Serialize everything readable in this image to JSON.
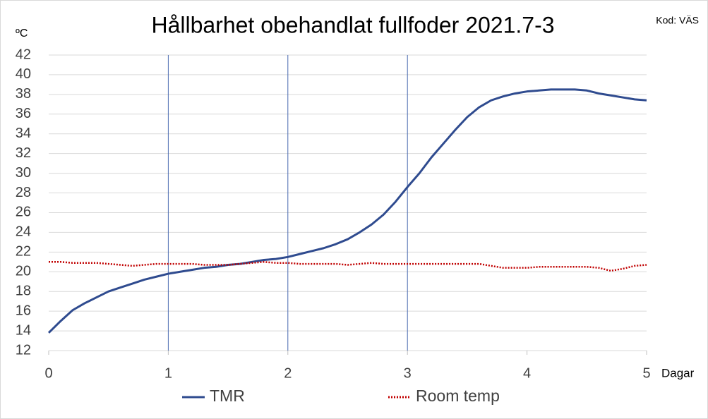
{
  "chart_data": {
    "type": "line",
    "title": "Hållbarhet obehandlat fullfoder 2021.7-3",
    "code_label": "Kod: VÄS",
    "y_label": "ºC",
    "x_label": "Dagar",
    "x": [
      0,
      0.1,
      0.2,
      0.3,
      0.4,
      0.5,
      0.6,
      0.7,
      0.8,
      0.9,
      1,
      1.1,
      1.2,
      1.3,
      1.4,
      1.5,
      1.6,
      1.7,
      1.8,
      1.9,
      2,
      2.1,
      2.2,
      2.3,
      2.4,
      2.5,
      2.6,
      2.7,
      2.8,
      2.9,
      3,
      3.1,
      3.2,
      3.3,
      3.4,
      3.5,
      3.6,
      3.7,
      3.8,
      3.9,
      4,
      4.1,
      4.2,
      4.3,
      4.4,
      4.5,
      4.6,
      4.7,
      4.8,
      4.9,
      5
    ],
    "series": [
      {
        "name": "TMR",
        "color": "#2f4b8f",
        "style": "solid",
        "values": [
          13.8,
          15.0,
          16.1,
          16.8,
          17.4,
          18.0,
          18.4,
          18.8,
          19.2,
          19.5,
          19.8,
          20.0,
          20.2,
          20.4,
          20.5,
          20.7,
          20.8,
          21.0,
          21.2,
          21.3,
          21.5,
          21.8,
          22.1,
          22.4,
          22.8,
          23.3,
          24.0,
          24.8,
          25.8,
          27.1,
          28.6,
          30.0,
          31.6,
          33.0,
          34.4,
          35.7,
          36.7,
          37.4,
          37.8,
          38.1,
          38.3,
          38.4,
          38.5,
          38.5,
          38.5,
          38.4,
          38.1,
          37.9,
          37.7,
          37.5,
          37.4
        ]
      },
      {
        "name": "Room temp",
        "color": "#c00000",
        "style": "dotted",
        "values": [
          21.0,
          21.0,
          20.9,
          20.9,
          20.9,
          20.8,
          20.7,
          20.6,
          20.7,
          20.8,
          20.8,
          20.8,
          20.8,
          20.7,
          20.7,
          20.7,
          20.8,
          20.9,
          21.0,
          20.9,
          20.9,
          20.8,
          20.8,
          20.8,
          20.8,
          20.7,
          20.8,
          20.9,
          20.8,
          20.8,
          20.8,
          20.8,
          20.8,
          20.8,
          20.8,
          20.8,
          20.8,
          20.6,
          20.4,
          20.4,
          20.4,
          20.5,
          20.5,
          20.5,
          20.5,
          20.5,
          20.4,
          20.1,
          20.3,
          20.6,
          20.7
        ]
      }
    ],
    "xlim": [
      0,
      5
    ],
    "xticks": [
      0,
      1,
      2,
      3,
      4,
      5
    ],
    "ylim": [
      12,
      42
    ],
    "yticks": [
      12,
      14,
      16,
      18,
      20,
      22,
      24,
      26,
      28,
      30,
      32,
      34,
      36,
      38,
      40,
      42
    ],
    "x_lines": [
      1,
      2,
      3
    ],
    "x_line_color": "#4a6ab0",
    "grid": true
  }
}
